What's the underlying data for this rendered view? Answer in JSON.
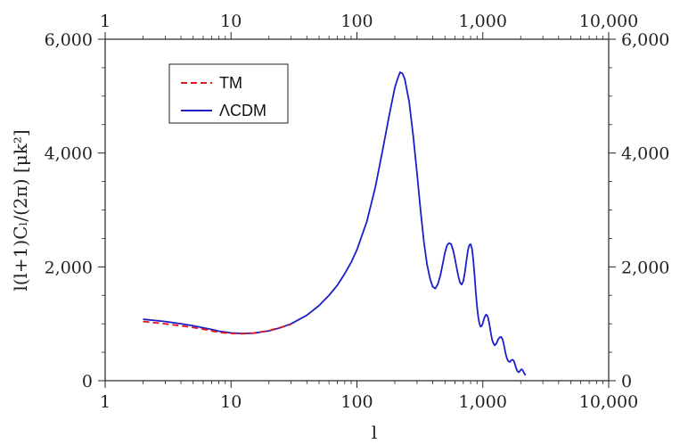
{
  "chart_data": {
    "type": "line",
    "xlabel": "l",
    "ylabel": "l(l+1)Cₗ/(2π) [μk²]",
    "x_scale": "log",
    "xlim": [
      1,
      10000
    ],
    "ylim": [
      0,
      6000
    ],
    "x_ticks": [
      {
        "value": 1,
        "label": "1"
      },
      {
        "value": 10,
        "label": "10"
      },
      {
        "value": 100,
        "label": "100"
      },
      {
        "value": 1000,
        "label": "1,000"
      },
      {
        "value": 10000,
        "label": "10,000"
      }
    ],
    "y_ticks": [
      {
        "value": 0,
        "label": "0"
      },
      {
        "value": 2000,
        "label": "2,000"
      },
      {
        "value": 4000,
        "label": "4,000"
      },
      {
        "value": 6000,
        "label": "6,000"
      }
    ],
    "legend": {
      "position": "top-left"
    },
    "series": [
      {
        "name": "TM",
        "color": "#e8151b",
        "style": "dashed",
        "x": [
          2,
          3,
          4,
          5,
          6,
          7,
          8,
          10,
          12,
          15,
          20,
          25,
          30
        ],
        "y": [
          1040,
          1000,
          965,
          935,
          905,
          875,
          850,
          830,
          825,
          835,
          880,
          940,
          990
        ]
      },
      {
        "name": "ΛCDM",
        "color": "#1c1fc7",
        "style": "solid",
        "x": [
          2,
          3,
          4,
          5,
          6,
          7,
          8,
          10,
          12,
          15,
          20,
          25,
          30,
          40,
          50,
          60,
          70,
          80,
          90,
          100,
          120,
          140,
          160,
          180,
          200,
          210,
          220,
          230,
          240,
          260,
          280,
          300,
          320,
          340,
          360,
          380,
          400,
          420,
          440,
          460,
          480,
          500,
          520,
          540,
          560,
          580,
          600,
          620,
          640,
          660,
          680,
          700,
          720,
          740,
          760,
          780,
          800,
          820,
          840,
          860,
          880,
          900,
          920,
          940,
          960,
          980,
          1000,
          1020,
          1040,
          1060,
          1080,
          1100,
          1120,
          1140,
          1160,
          1180,
          1200,
          1240,
          1280,
          1320,
          1360,
          1400,
          1440,
          1480,
          1520,
          1560,
          1600,
          1640,
          1680,
          1720,
          1760,
          1800,
          1840,
          1880,
          1920,
          1960,
          2000,
          2040,
          2080,
          2120,
          2160,
          2200
        ],
        "y": [
          1080,
          1040,
          1000,
          965,
          930,
          900,
          870,
          840,
          830,
          835,
          875,
          935,
          1000,
          1150,
          1320,
          1500,
          1680,
          1880,
          2080,
          2300,
          2800,
          3400,
          4050,
          4650,
          5150,
          5300,
          5420,
          5400,
          5300,
          4900,
          4300,
          3650,
          3000,
          2450,
          2050,
          1800,
          1650,
          1620,
          1700,
          1850,
          2050,
          2250,
          2380,
          2420,
          2400,
          2300,
          2150,
          1980,
          1830,
          1720,
          1690,
          1750,
          1900,
          2100,
          2280,
          2380,
          2400,
          2320,
          2120,
          1850,
          1550,
          1300,
          1120,
          1000,
          950,
          960,
          1010,
          1080,
          1130,
          1160,
          1150,
          1110,
          1030,
          930,
          830,
          740,
          680,
          620,
          650,
          720,
          760,
          770,
          720,
          600,
          470,
          380,
          340,
          330,
          360,
          370,
          350,
          290,
          220,
          170,
          150,
          160,
          190,
          200,
          180,
          140,
          110,
          100
        ]
      }
    ]
  }
}
